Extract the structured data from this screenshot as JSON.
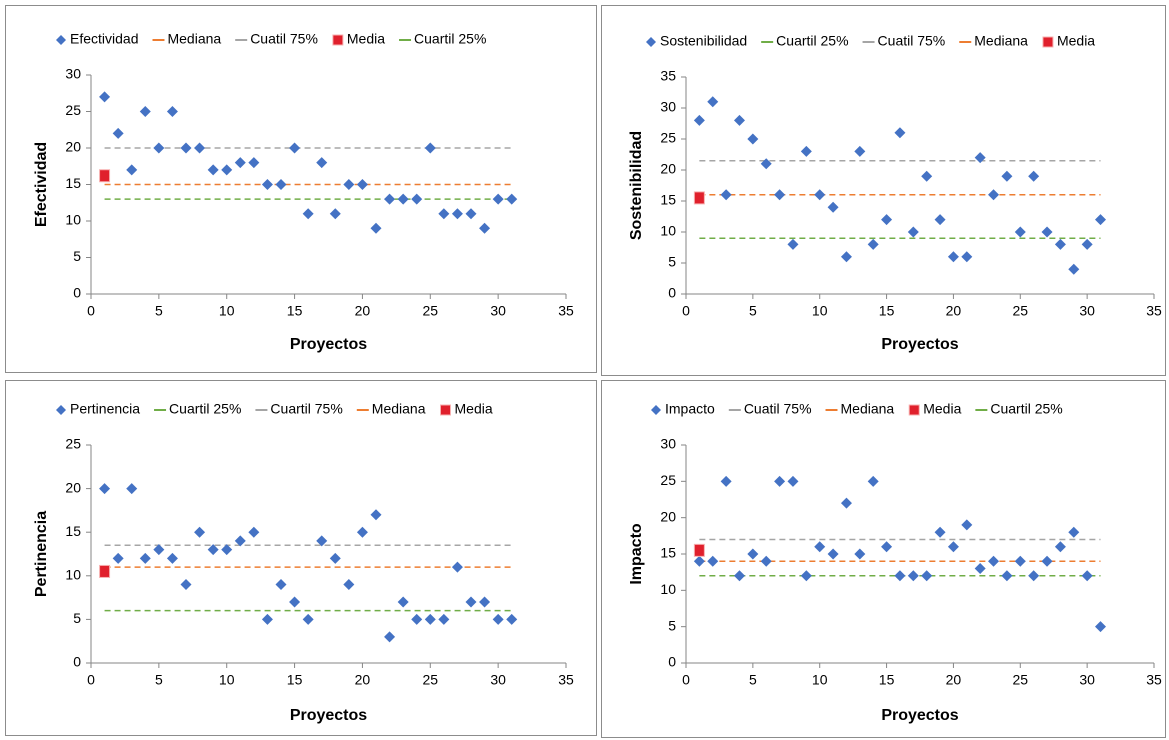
{
  "chart_data": [
    {
      "type": "scatter",
      "x_label": "Proyectos",
      "y_label": "Efectividad",
      "xlim": [
        0,
        35
      ],
      "xticks": [
        0,
        5,
        10,
        15,
        20,
        25,
        30,
        35
      ],
      "ylim": [
        0,
        30
      ],
      "yticks": [
        0,
        5,
        10,
        15,
        20,
        25,
        30
      ],
      "series": [
        {
          "name": "Efectividad",
          "color": "#4472c4",
          "marker": "diamond",
          "x": [
            1,
            2,
            3,
            4,
            5,
            6,
            7,
            8,
            9,
            10,
            11,
            12,
            13,
            14,
            15,
            16,
            17,
            18,
            19,
            20,
            21,
            22,
            23,
            24,
            25,
            26,
            27,
            28,
            29,
            30,
            31
          ],
          "values": [
            27,
            22,
            17,
            25,
            20,
            25,
            20,
            20,
            17,
            17,
            18,
            18,
            15,
            15,
            20,
            11,
            18,
            11,
            15,
            15,
            9,
            13,
            13,
            13,
            20,
            11,
            11,
            11,
            9,
            13,
            13
          ]
        },
        {
          "name": "Mediana",
          "color": "#ed7d31",
          "marker": "dashed-line",
          "x": [
            1,
            31
          ],
          "values": [
            15,
            15
          ]
        },
        {
          "name": "Cuatil 75%",
          "color": "#a5a5a5",
          "marker": "dashed-line",
          "x": [
            1,
            31
          ],
          "values": [
            20,
            20
          ]
        },
        {
          "name": "Media",
          "color": "#e0202c",
          "marker": "square",
          "x": [
            1
          ],
          "values": [
            16.2
          ]
        },
        {
          "name": "Cuartil 25%",
          "color": "#70ad47",
          "marker": "dashed-line",
          "x": [
            1,
            31
          ],
          "values": [
            13,
            13
          ]
        }
      ]
    },
    {
      "type": "scatter",
      "x_label": "Proyectos",
      "y_label": "Sostenibilidad",
      "xlim": [
        0,
        35
      ],
      "xticks": [
        0,
        5,
        10,
        15,
        20,
        25,
        30,
        35
      ],
      "ylim": [
        0,
        35
      ],
      "yticks": [
        0,
        5,
        10,
        15,
        20,
        25,
        30,
        35
      ],
      "series": [
        {
          "name": "Sostenibilidad",
          "color": "#4472c4",
          "marker": "diamond",
          "x": [
            1,
            2,
            3,
            4,
            5,
            6,
            7,
            8,
            9,
            10,
            11,
            12,
            13,
            14,
            15,
            16,
            17,
            18,
            19,
            20,
            21,
            22,
            23,
            24,
            25,
            26,
            27,
            28,
            29,
            30,
            31
          ],
          "values": [
            28,
            31,
            16,
            28,
            25,
            21,
            16,
            8,
            23,
            16,
            14,
            6,
            23,
            8,
            12,
            26,
            10,
            19,
            12,
            6,
            6,
            22,
            16,
            19,
            10,
            19,
            10,
            8,
            4,
            8,
            12
          ]
        },
        {
          "name": "Cuartil 25%",
          "color": "#70ad47",
          "marker": "dashed-line",
          "x": [
            1,
            31
          ],
          "values": [
            9,
            9
          ]
        },
        {
          "name": "Cuatil 75%",
          "color": "#a5a5a5",
          "marker": "dashed-line",
          "x": [
            1,
            31
          ],
          "values": [
            21.5,
            21.5
          ]
        },
        {
          "name": "Mediana",
          "color": "#ed7d31",
          "marker": "dashed-line",
          "x": [
            1,
            31
          ],
          "values": [
            16,
            16
          ]
        },
        {
          "name": "Media",
          "color": "#e0202c",
          "marker": "square",
          "x": [
            1
          ],
          "values": [
            15.5
          ]
        }
      ]
    },
    {
      "type": "scatter",
      "x_label": "Proyectos",
      "y_label": "Pertinencia",
      "xlim": [
        0,
        35
      ],
      "xticks": [
        0,
        5,
        10,
        15,
        20,
        25,
        30,
        35
      ],
      "ylim": [
        0,
        25
      ],
      "yticks": [
        0,
        5,
        10,
        15,
        20,
        25
      ],
      "series": [
        {
          "name": "Pertinencia",
          "color": "#4472c4",
          "marker": "diamond",
          "x": [
            1,
            2,
            3,
            4,
            5,
            6,
            7,
            8,
            9,
            10,
            11,
            12,
            13,
            14,
            15,
            16,
            17,
            18,
            19,
            20,
            21,
            22,
            23,
            24,
            25,
            26,
            27,
            28,
            29,
            30,
            31
          ],
          "values": [
            20,
            12,
            20,
            12,
            13,
            12,
            9,
            15,
            13,
            13,
            14,
            15,
            5,
            9,
            7,
            5,
            14,
            12,
            9,
            15,
            17,
            3,
            7,
            5,
            5,
            5,
            11,
            7,
            7,
            5,
            5
          ]
        },
        {
          "name": "Cuartil 25%",
          "color": "#70ad47",
          "marker": "dashed-line",
          "x": [
            1,
            31
          ],
          "values": [
            6,
            6
          ]
        },
        {
          "name": "Cuartil 75%",
          "color": "#a5a5a5",
          "marker": "dashed-line",
          "x": [
            1,
            31
          ],
          "values": [
            13.5,
            13.5
          ]
        },
        {
          "name": "Mediana",
          "color": "#ed7d31",
          "marker": "dashed-line",
          "x": [
            1,
            31
          ],
          "values": [
            11,
            11
          ]
        },
        {
          "name": "Media",
          "color": "#e0202c",
          "marker": "square",
          "x": [
            1
          ],
          "values": [
            10.5
          ]
        }
      ]
    },
    {
      "type": "scatter",
      "x_label": "Proyectos",
      "y_label": "Impacto",
      "xlim": [
        0,
        35
      ],
      "xticks": [
        0,
        5,
        10,
        15,
        20,
        25,
        30,
        35
      ],
      "ylim": [
        0,
        30
      ],
      "yticks": [
        0,
        5,
        10,
        15,
        20,
        25,
        30
      ],
      "series": [
        {
          "name": "Impacto",
          "color": "#4472c4",
          "marker": "diamond",
          "x": [
            1,
            2,
            3,
            4,
            5,
            6,
            7,
            8,
            9,
            10,
            11,
            12,
            13,
            14,
            15,
            16,
            17,
            18,
            19,
            20,
            21,
            22,
            23,
            24,
            25,
            26,
            27,
            28,
            29,
            30,
            31
          ],
          "values": [
            14,
            14,
            25,
            12,
            15,
            14,
            25,
            25,
            12,
            16,
            15,
            22,
            15,
            25,
            16,
            12,
            12,
            12,
            18,
            16,
            19,
            13,
            14,
            12,
            14,
            12,
            14,
            16,
            18,
            12,
            5
          ]
        },
        {
          "name": "Cuatil 75%",
          "color": "#a5a5a5",
          "marker": "dashed-line",
          "x": [
            1,
            31
          ],
          "values": [
            17,
            17
          ]
        },
        {
          "name": "Mediana",
          "color": "#ed7d31",
          "marker": "dashed-line",
          "x": [
            1,
            31
          ],
          "values": [
            14,
            14
          ]
        },
        {
          "name": "Media",
          "color": "#e0202c",
          "marker": "square",
          "x": [
            1
          ],
          "values": [
            15.5
          ]
        },
        {
          "name": "Cuartil 25%",
          "color": "#70ad47",
          "marker": "dashed-line",
          "x": [
            1,
            31
          ],
          "values": [
            12,
            12
          ]
        }
      ]
    }
  ]
}
